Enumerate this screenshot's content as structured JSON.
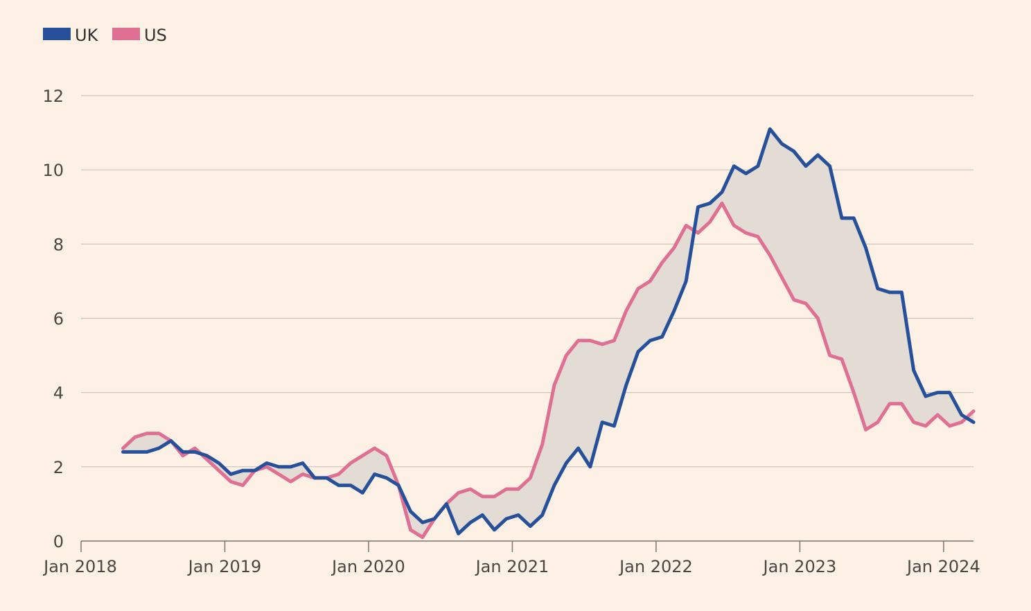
{
  "chart_data": {
    "type": "line",
    "title": "",
    "xlabel": "",
    "ylabel": "",
    "ylim": [
      0,
      12
    ],
    "yticks": [
      "0",
      "2",
      "4",
      "6",
      "8",
      "10",
      "12"
    ],
    "xticks": [
      "Jan 2018",
      "Jan 2019",
      "Jan 2020",
      "Jan 2021",
      "Jan 2022",
      "Jan 2023",
      "Jan 2024"
    ],
    "grid": true,
    "legend_position": "top-left",
    "fill_between_series": true,
    "fill_color": "#e3dcd5",
    "start": "2018-04",
    "frequency": "monthly",
    "series": [
      {
        "name": "UK",
        "color": "#27509b",
        "values": [
          2.4,
          2.4,
          2.4,
          2.5,
          2.7,
          2.4,
          2.4,
          2.3,
          2.1,
          1.8,
          1.9,
          1.9,
          2.1,
          2.0,
          2.0,
          2.1,
          1.7,
          1.7,
          1.5,
          1.5,
          1.3,
          1.8,
          1.7,
          1.5,
          0.8,
          0.5,
          0.6,
          1.0,
          0.2,
          0.5,
          0.7,
          0.3,
          0.6,
          0.7,
          0.4,
          0.7,
          1.5,
          2.1,
          2.5,
          2.0,
          3.2,
          3.1,
          4.2,
          5.1,
          5.4,
          5.5,
          6.2,
          7.0,
          9.0,
          9.1,
          9.4,
          10.1,
          9.9,
          10.1,
          11.1,
          10.7,
          10.5,
          10.1,
          10.4,
          10.1,
          8.7,
          8.7,
          7.9,
          6.8,
          6.7,
          6.7,
          4.6,
          3.9,
          4.0,
          4.0,
          3.4,
          3.2
        ]
      },
      {
        "name": "US",
        "color": "#e07093",
        "values": [
          2.5,
          2.8,
          2.9,
          2.9,
          2.7,
          2.3,
          2.5,
          2.2,
          1.9,
          1.6,
          1.5,
          1.9,
          2.0,
          1.8,
          1.6,
          1.8,
          1.7,
          1.7,
          1.8,
          2.1,
          2.3,
          2.5,
          2.3,
          1.5,
          0.3,
          0.1,
          0.6,
          1.0,
          1.3,
          1.4,
          1.2,
          1.2,
          1.4,
          1.4,
          1.7,
          2.6,
          4.2,
          5.0,
          5.4,
          5.4,
          5.3,
          5.4,
          6.2,
          6.8,
          7.0,
          7.5,
          7.9,
          8.5,
          8.3,
          8.6,
          9.1,
          8.5,
          8.3,
          8.2,
          7.7,
          7.1,
          6.5,
          6.4,
          6.0,
          5.0,
          4.9,
          4.0,
          3.0,
          3.2,
          3.7,
          3.7,
          3.2,
          3.1,
          3.4,
          3.1,
          3.2,
          3.5
        ]
      }
    ]
  }
}
